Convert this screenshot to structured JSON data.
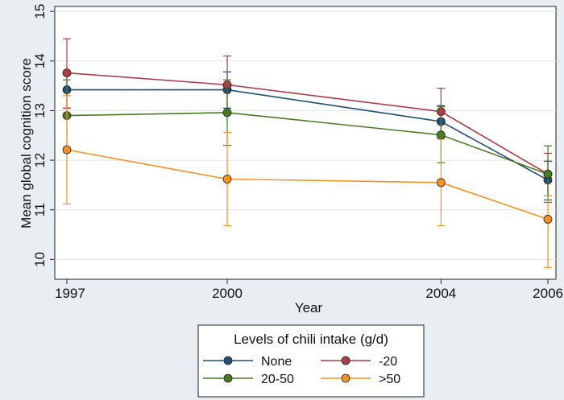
{
  "chart_data": {
    "type": "line",
    "title": "",
    "xlabel": "Year",
    "ylabel": "Mean global cognition score",
    "x": [
      1997,
      2000,
      2004,
      2006
    ],
    "x_ticks": [
      "1997",
      "2000",
      "2004",
      "2006"
    ],
    "y_ticks": [
      "10",
      "11",
      "12",
      "13",
      "14",
      "15"
    ],
    "xlim": [
      1997,
      2006
    ],
    "ylim": [
      9.6,
      15.1
    ],
    "grid": "horizontal",
    "legend": {
      "title": "Levels of chili intake (g/d)",
      "placement": "bottom"
    },
    "series": [
      {
        "name": "None",
        "color": "#1f4e79",
        "values": [
          13.42,
          13.42,
          12.78,
          11.6
        ],
        "ci_low": [
          13.05,
          13.05,
          12.45,
          11.2
        ],
        "ci_high": [
          13.78,
          13.78,
          13.1,
          11.98
        ]
      },
      {
        "name": "-20",
        "color": "#b03a48",
        "values": [
          13.76,
          13.52,
          12.98,
          11.72
        ],
        "ci_low": [
          13.05,
          12.95,
          12.5,
          11.28
        ],
        "ci_high": [
          14.45,
          14.1,
          13.45,
          12.14
        ]
      },
      {
        "name": "20-50",
        "color": "#4a7b24",
        "values": [
          12.9,
          12.96,
          12.51,
          11.72
        ],
        "ci_low": [
          12.18,
          12.3,
          11.95,
          11.15
        ],
        "ci_high": [
          13.62,
          13.62,
          13.08,
          12.29
        ]
      },
      {
        "name": ">50",
        "color": "#f79222",
        "values": [
          12.21,
          11.62,
          11.55,
          10.81
        ],
        "ci_low": [
          11.12,
          10.68,
          10.68,
          9.84
        ],
        "ci_high": [
          13.3,
          12.56,
          12.42,
          11.28
        ]
      }
    ]
  }
}
